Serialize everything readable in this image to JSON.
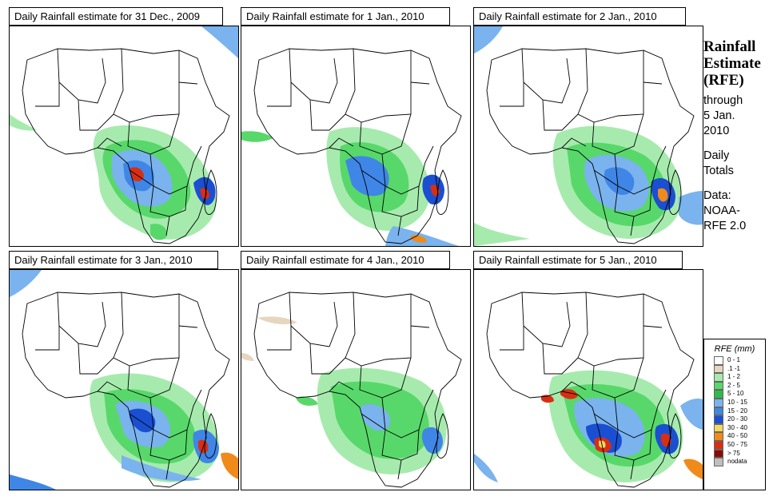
{
  "panels": [
    {
      "title": "Daily Rainfall estimate for  31 Dec., 2009"
    },
    {
      "title": "Daily Rainfall estimate for  1 Jan., 2010"
    },
    {
      "title": "Daily Rainfall estimate for  2 Jan., 2010"
    },
    {
      "title": "Daily Rainfall estimate for  3 Jan., 2010"
    },
    {
      "title": "Daily Rainfall estimate for  4 Jan., 2010"
    },
    {
      "title": "Daily Rainfall estimate for  5 Jan., 2010"
    }
  ],
  "side": {
    "title_line1": "Rainfall",
    "title_line2": "Estimate",
    "title_line3": "(RFE)",
    "through": "through",
    "date_line1": "5 Jan.",
    "date_line2": "2010",
    "daily_line1": "Daily",
    "daily_line2": "Totals",
    "data_label": "Data:",
    "source_line1": "NOAA-",
    "source_line2": "RFE 2.0"
  },
  "legend": {
    "title": "RFE (mm)",
    "items": [
      {
        "label": "0 - 1",
        "color": "#ffffff"
      },
      {
        "label": ".1 -1",
        "color": "#e6d6bf"
      },
      {
        "label": "1 - 2",
        "color": "#a6ebad"
      },
      {
        "label": "2 - 5",
        "color": "#58d86a"
      },
      {
        "label": "5 - 10",
        "color": "#2fba4b"
      },
      {
        "label": "10 - 15",
        "color": "#7ab3ee"
      },
      {
        "label": "15 - 20",
        "color": "#3f86e6"
      },
      {
        "label": "20 - 30",
        "color": "#1a4fd2"
      },
      {
        "label": "30 - 40",
        "color": "#f6d760"
      },
      {
        "label": "40 - 50",
        "color": "#f08a1a"
      },
      {
        "label": "50 - 75",
        "color": "#d92e12"
      },
      {
        "label": "> 75",
        "color": "#8a0a05"
      },
      {
        "label": "nodata",
        "color": "#bfbfbf"
      }
    ]
  }
}
